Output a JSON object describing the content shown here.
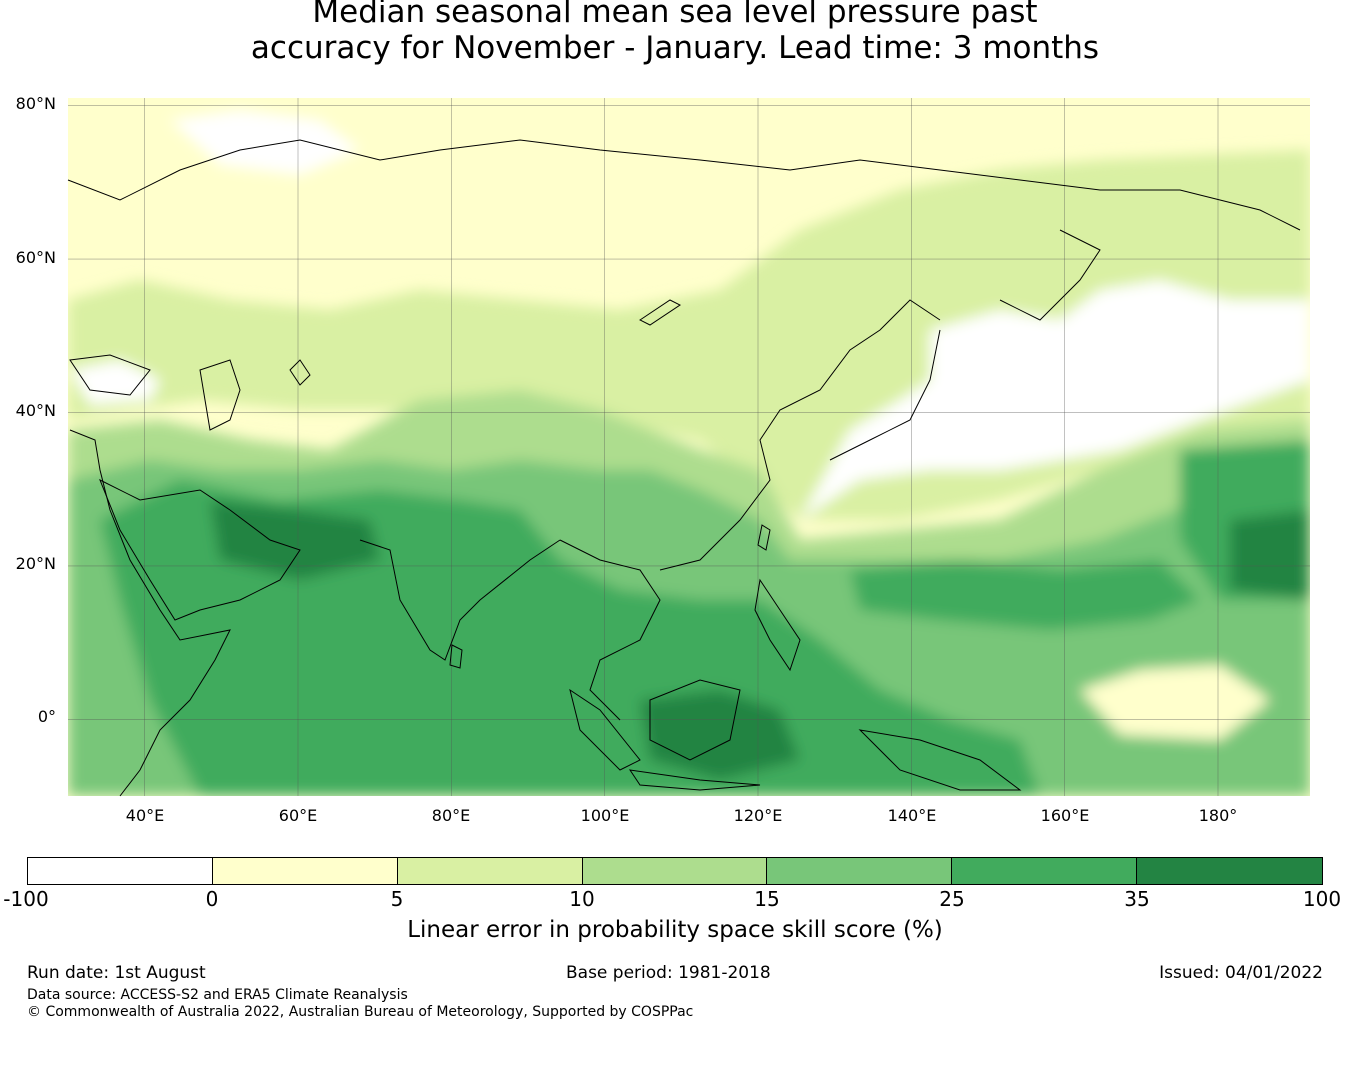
{
  "title": {
    "line1": "Median seasonal mean sea level pressure past",
    "line2": "accuracy for November - January. Lead time: 3 months"
  },
  "map": {
    "lat_labels": [
      "80°N",
      "60°N",
      "40°N",
      "20°N",
      "0°"
    ],
    "lon_labels": [
      "40°E",
      "60°E",
      "80°E",
      "100°E",
      "120°E",
      "140°E",
      "160°E",
      "180°"
    ],
    "extent": {
      "lon_min": 30,
      "lon_max": 192,
      "lat_min": -10,
      "lat_max": 81
    },
    "gridlines": true
  },
  "colorbar": {
    "label": "Linear error in probability space skill score (%)",
    "ticks": [
      "-100",
      "0",
      "5",
      "10",
      "15",
      "25",
      "35",
      "100"
    ],
    "colors": [
      "#ffffff",
      "#ffffcc",
      "#d9f0a3",
      "#addd8e",
      "#78c679",
      "#41ab5d",
      "#238443"
    ]
  },
  "footer": {
    "run_date": "Run date: 1st August",
    "base_period": "Base period: 1981-2018",
    "issued": "Issued: 04/01/2022",
    "data_source": "Data source: ACCESS-S2 and ERA5 Climate Reanalysis",
    "copyright": "© Commonwealth of Australia 2022, Australian Bureau of Meteorology, Supported by COSPPac"
  }
}
